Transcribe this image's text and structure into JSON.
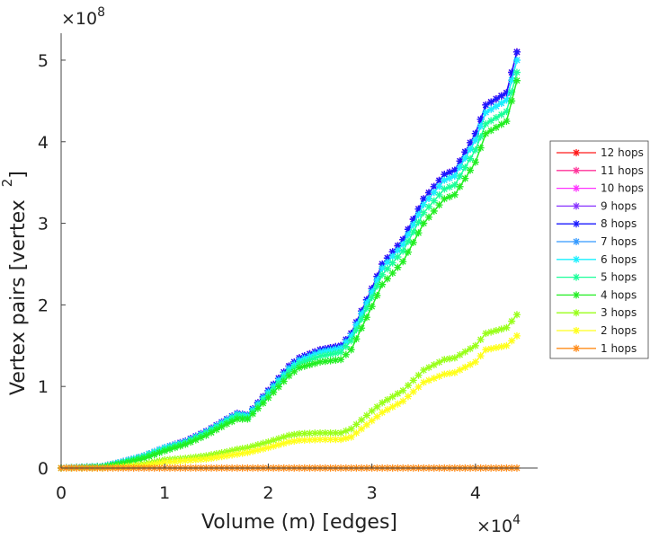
{
  "chart_data": {
    "type": "line",
    "title": "",
    "xlabel": "Volume (m) [edges]",
    "ylabel": {
      "main": "Vertex pairs [vertex",
      "sup": "2",
      "close": "]"
    },
    "x_multiplier": {
      "base": "×10",
      "exp": "4"
    },
    "y_multiplier": {
      "base": "×10",
      "exp": "8"
    },
    "xlim": [
      0,
      4.6
    ],
    "ylim": [
      0,
      5.33
    ],
    "x_ticks": [
      "0",
      "1",
      "2",
      "3",
      "4"
    ],
    "y_ticks": [
      "0",
      "1",
      "2",
      "3",
      "4",
      "5"
    ],
    "legend_position": "right-outside",
    "x": [
      0,
      0.4,
      0.6,
      0.8,
      1.0,
      1.2,
      1.4,
      1.6,
      1.7,
      1.8,
      2.0,
      2.2,
      2.3,
      2.5,
      2.7,
      2.8,
      3.0,
      3.1,
      3.3,
      3.5,
      3.7,
      3.8,
      4.0,
      4.1,
      4.3,
      4.4
    ],
    "series": [
      {
        "name": "12 hops",
        "color": "#ff1a1a",
        "values": [
          0,
          0.02,
          0.08,
          0.15,
          0.25,
          0.33,
          0.45,
          0.6,
          0.67,
          0.65,
          0.95,
          1.25,
          1.35,
          1.45,
          1.5,
          1.65,
          2.2,
          2.5,
          2.8,
          3.3,
          3.6,
          3.65,
          4.1,
          4.45,
          4.6,
          5.1
        ]
      },
      {
        "name": "11 hops",
        "color": "#ff3399",
        "values": [
          0,
          0.02,
          0.08,
          0.15,
          0.25,
          0.33,
          0.45,
          0.6,
          0.67,
          0.65,
          0.95,
          1.25,
          1.35,
          1.45,
          1.5,
          1.65,
          2.2,
          2.5,
          2.8,
          3.3,
          3.6,
          3.65,
          4.1,
          4.45,
          4.6,
          5.1
        ]
      },
      {
        "name": "10 hops",
        "color": "#ff33ff",
        "values": [
          0,
          0.02,
          0.08,
          0.15,
          0.25,
          0.33,
          0.45,
          0.6,
          0.67,
          0.65,
          0.95,
          1.25,
          1.35,
          1.45,
          1.5,
          1.65,
          2.2,
          2.5,
          2.8,
          3.3,
          3.6,
          3.65,
          4.1,
          4.45,
          4.6,
          5.1
        ]
      },
      {
        "name": "9 hops",
        "color": "#8833ff",
        "values": [
          0,
          0.02,
          0.08,
          0.15,
          0.25,
          0.33,
          0.45,
          0.6,
          0.67,
          0.65,
          0.95,
          1.25,
          1.35,
          1.45,
          1.5,
          1.65,
          2.2,
          2.5,
          2.8,
          3.3,
          3.6,
          3.65,
          4.1,
          4.45,
          4.6,
          5.1
        ]
      },
      {
        "name": "8 hops",
        "color": "#1a1aff",
        "values": [
          0,
          0.02,
          0.08,
          0.15,
          0.25,
          0.33,
          0.45,
          0.6,
          0.67,
          0.65,
          0.95,
          1.25,
          1.35,
          1.45,
          1.5,
          1.65,
          2.2,
          2.5,
          2.8,
          3.3,
          3.6,
          3.65,
          4.1,
          4.45,
          4.6,
          5.1
        ]
      },
      {
        "name": "7 hops",
        "color": "#3399ff",
        "values": [
          0,
          0.02,
          0.08,
          0.15,
          0.25,
          0.32,
          0.44,
          0.59,
          0.66,
          0.64,
          0.93,
          1.22,
          1.32,
          1.42,
          1.47,
          1.62,
          2.16,
          2.45,
          2.74,
          3.23,
          3.53,
          3.58,
          4.02,
          4.36,
          4.51,
          5.0
        ]
      },
      {
        "name": "6 hops",
        "color": "#1af0ff",
        "values": [
          0,
          0.02,
          0.08,
          0.15,
          0.25,
          0.32,
          0.44,
          0.59,
          0.66,
          0.64,
          0.93,
          1.22,
          1.32,
          1.42,
          1.47,
          1.62,
          2.16,
          2.45,
          2.74,
          3.23,
          3.53,
          3.58,
          4.02,
          4.36,
          4.51,
          5.0
        ]
      },
      {
        "name": "5 hops",
        "color": "#1aff99",
        "values": [
          0,
          0.02,
          0.07,
          0.14,
          0.23,
          0.31,
          0.43,
          0.57,
          0.64,
          0.62,
          0.9,
          1.18,
          1.28,
          1.37,
          1.42,
          1.56,
          2.09,
          2.37,
          2.66,
          3.13,
          3.42,
          3.47,
          3.9,
          4.22,
          4.37,
          4.85
        ]
      },
      {
        "name": "4 hops",
        "color": "#22ee22",
        "values": [
          0,
          0.01,
          0.06,
          0.12,
          0.21,
          0.29,
          0.4,
          0.54,
          0.6,
          0.6,
          0.86,
          1.13,
          1.23,
          1.3,
          1.33,
          1.45,
          1.98,
          2.25,
          2.53,
          3.0,
          3.3,
          3.35,
          3.75,
          4.1,
          4.25,
          4.75
        ]
      },
      {
        "name": "3 hops",
        "color": "#99ff1a",
        "values": [
          0,
          0,
          0.02,
          0.05,
          0.1,
          0.12,
          0.15,
          0.2,
          0.23,
          0.25,
          0.32,
          0.4,
          0.42,
          0.43,
          0.43,
          0.48,
          0.7,
          0.8,
          0.95,
          1.2,
          1.33,
          1.35,
          1.5,
          1.65,
          1.72,
          1.88
        ]
      },
      {
        "name": "2 hops",
        "color": "#ffff1a",
        "values": [
          0,
          0,
          0.01,
          0.03,
          0.07,
          0.09,
          0.11,
          0.15,
          0.17,
          0.19,
          0.25,
          0.32,
          0.34,
          0.35,
          0.35,
          0.38,
          0.58,
          0.68,
          0.82,
          1.05,
          1.15,
          1.17,
          1.3,
          1.45,
          1.5,
          1.62
        ]
      },
      {
        "name": "1 hops",
        "color": "#ff8c1a",
        "values": [
          0,
          0,
          0,
          0,
          0,
          0,
          0,
          0,
          0,
          0,
          0,
          0,
          0,
          0,
          0,
          0,
          0,
          0,
          0,
          0,
          0,
          0,
          0,
          0,
          0,
          0
        ]
      }
    ]
  }
}
